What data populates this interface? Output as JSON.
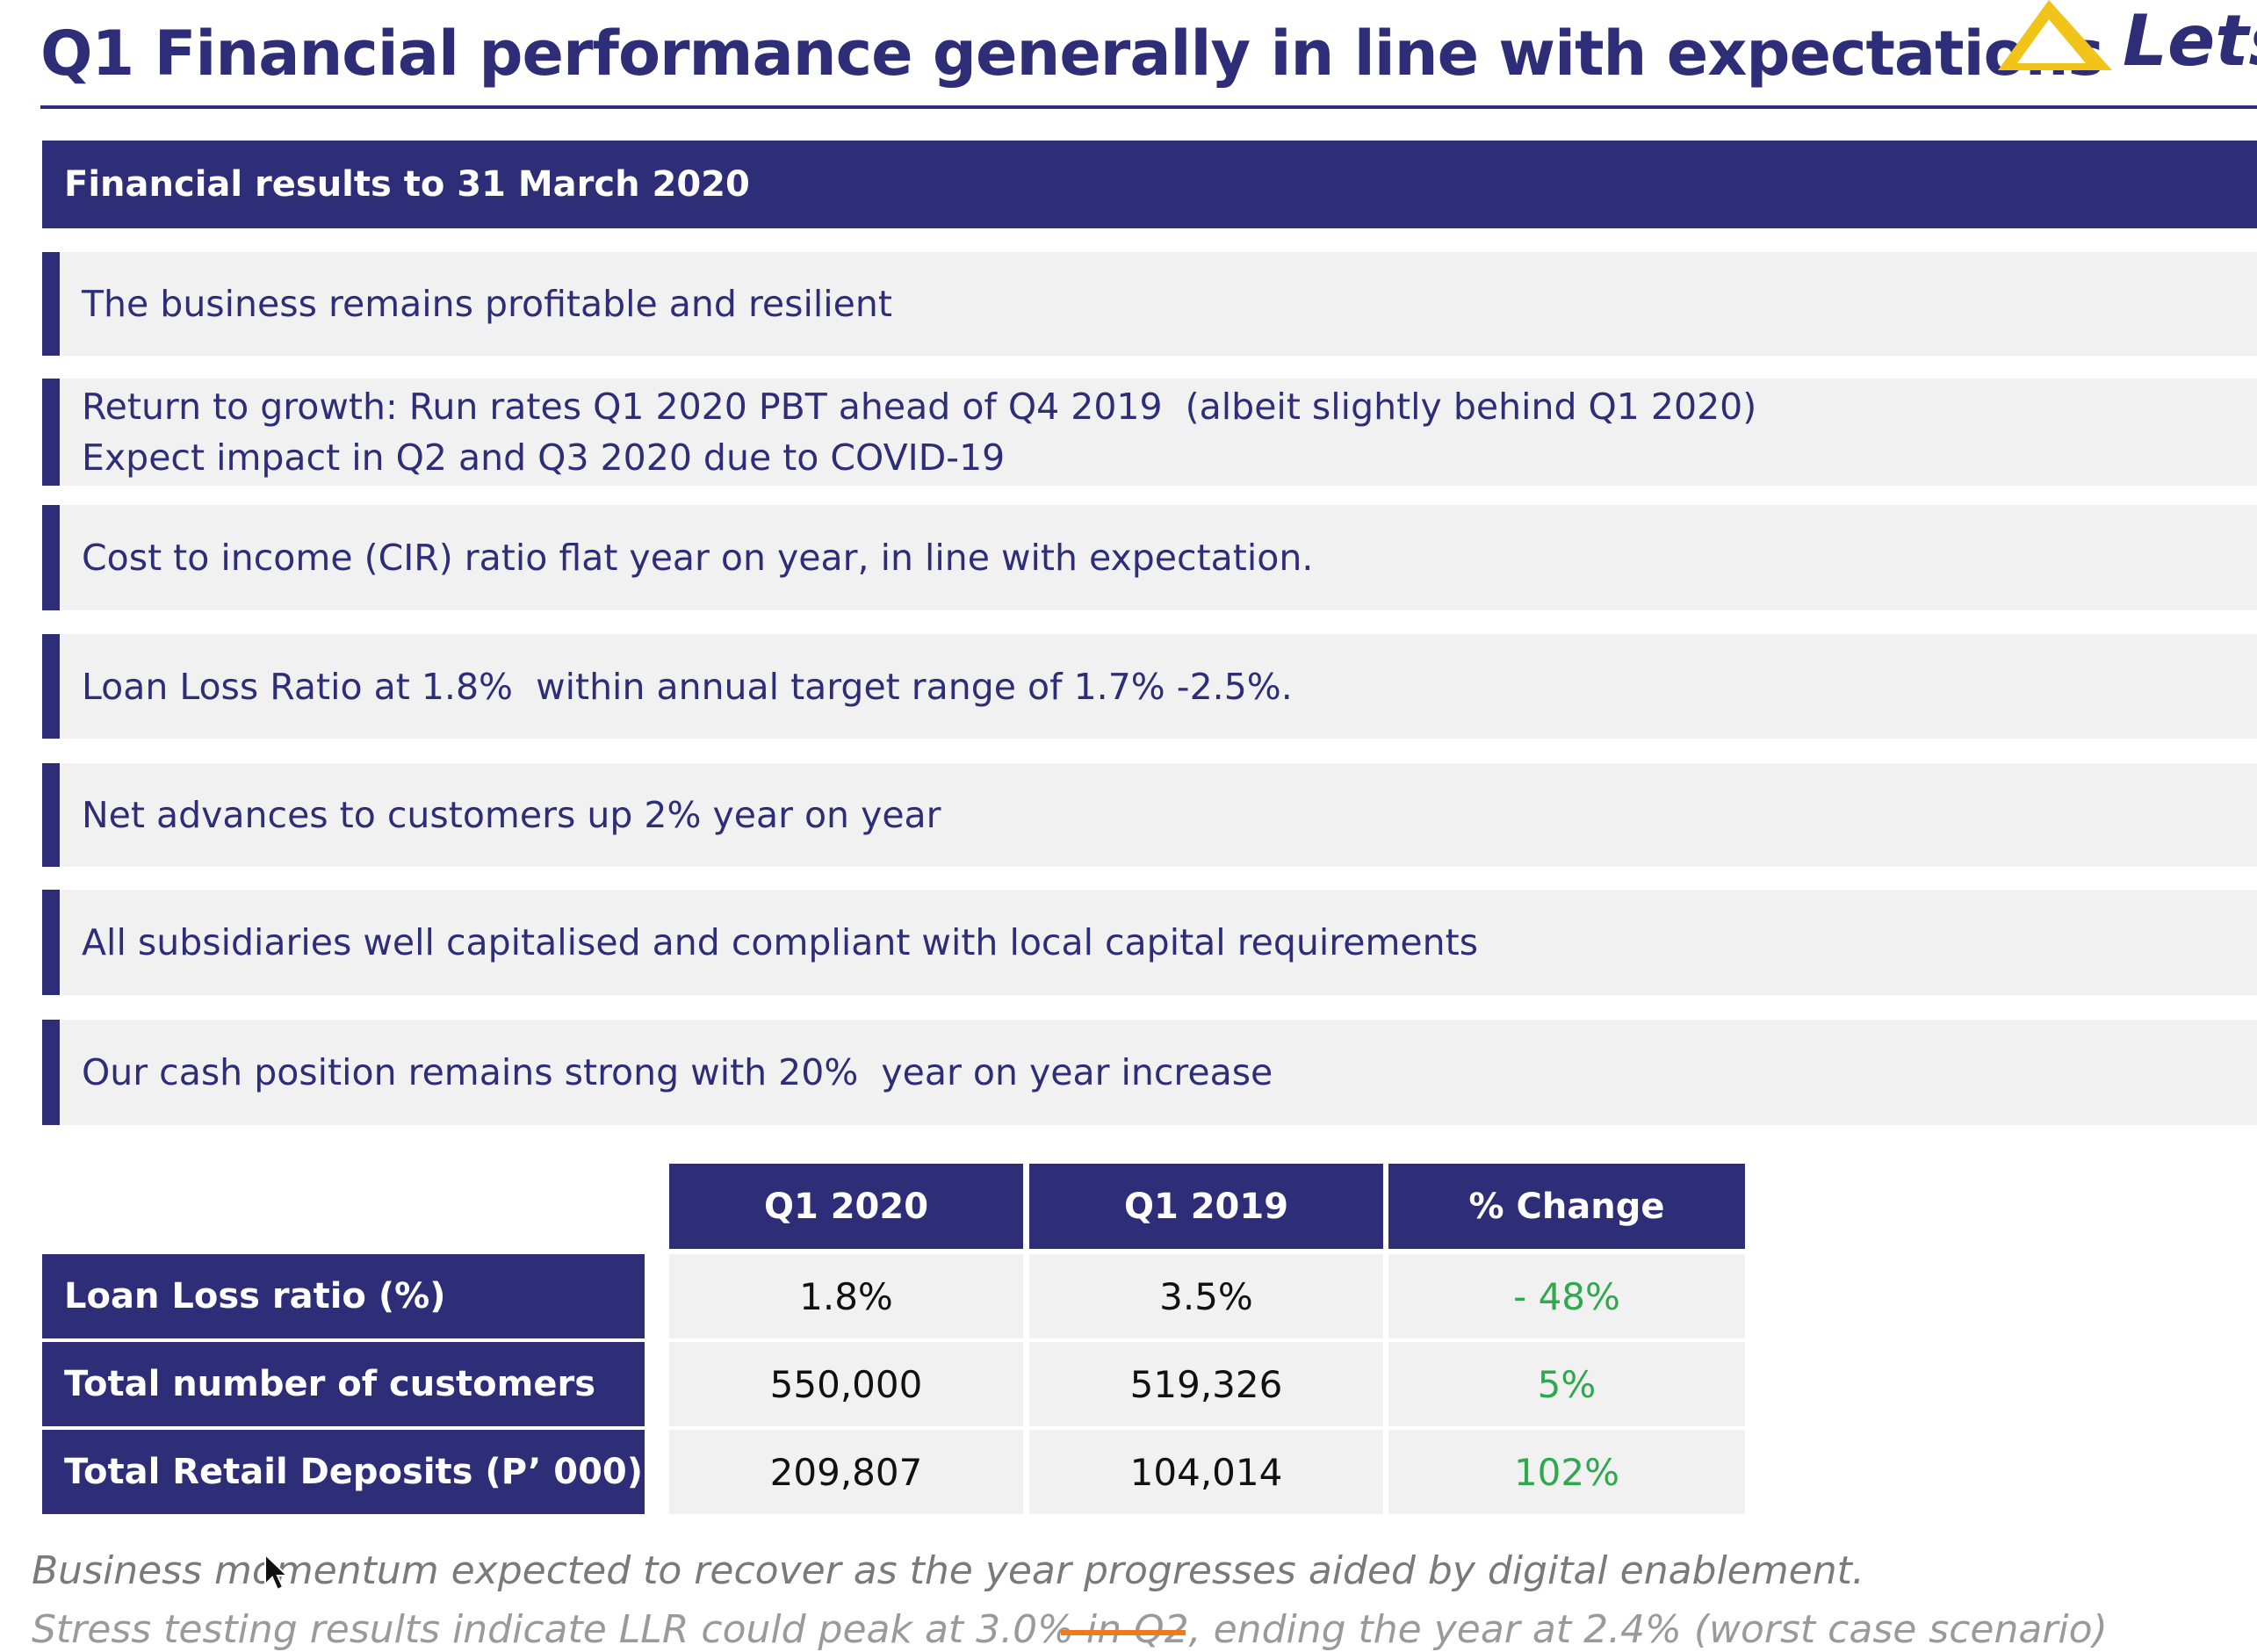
{
  "header": {
    "title": "Q1 Financial performance generally in line with expectations",
    "logo_text": "Lets"
  },
  "section": {
    "title": "Financial results to 31 March 2020"
  },
  "bullets": [
    {
      "text": "The business remains profitable and resilient"
    },
    {
      "text": "Return to growth: Run rates Q1 2020 PBT ahead of Q4 2019  (albeit slightly behind Q1 2020)\nExpect impact in Q2 and Q3 2020 due to COVID-19"
    },
    {
      "text": "Cost to income (CIR) ratio flat year on year, in line with expectation."
    },
    {
      "text": "Loan Loss Ratio at 1.8%  within annual target range of 1.7% -2.5%."
    },
    {
      "text": "Net advances to customers up 2% year on year"
    },
    {
      "text": "All subsidiaries well capitalised and compliant with local capital requirements"
    },
    {
      "text": "Our cash position remains strong with 20%  year on year increase"
    }
  ],
  "table": {
    "columns": [
      "Q1 2020",
      "Q1 2019",
      "% Change"
    ],
    "rows": [
      {
        "label": "Loan Loss ratio (%)",
        "q1_2020": "1.8%",
        "q1_2019": "3.5%",
        "change": "- 48%"
      },
      {
        "label": "Total number of customers",
        "q1_2020": "550,000",
        "q1_2019": "519,326",
        "change": "5%"
      },
      {
        "label": "Total  Retail Deposits (P’ 000)",
        "q1_2020": "209,807",
        "q1_2019": "104,014",
        "change": "102%"
      }
    ]
  },
  "footnotes": {
    "line1": "Business momentum expected to recover as the year progresses aided by digital enablement.",
    "line2": "Stress testing results indicate LLR could peak at 3.0% in Q2, ending the year at 2.4%  (worst case scenario)"
  },
  "colors": {
    "brand_navy": "#2e2e78",
    "logo_yellow": "#f2c318",
    "positive_green": "#2fa84f",
    "row_bg": "#f1f1f1"
  }
}
